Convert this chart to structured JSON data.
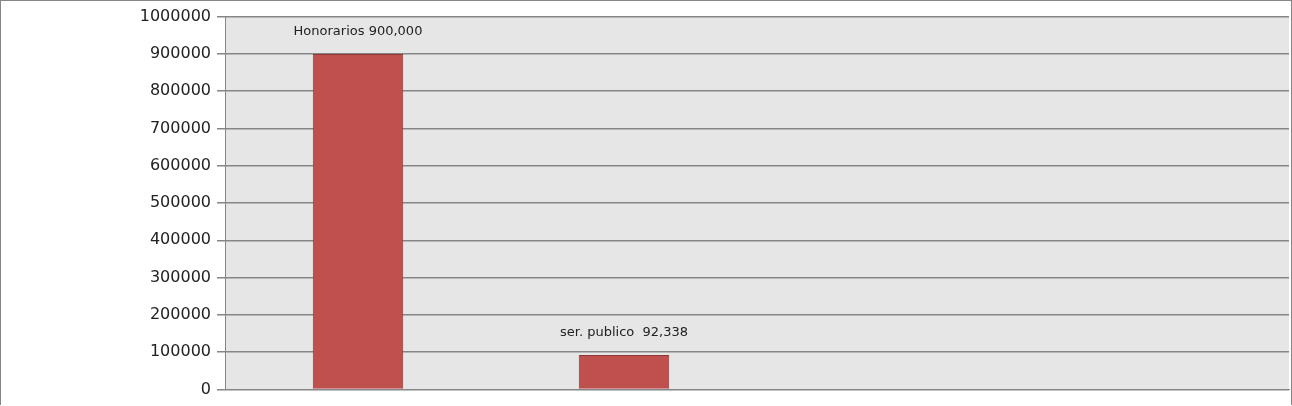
{
  "chart_data": {
    "type": "bar",
    "categories": [
      null,
      null,
      null,
      null
    ],
    "values": [
      900000,
      92338,
      null,
      null
    ],
    "value_labels": [
      "Honorarios 900,000",
      "ser. publico  92,338",
      null,
      null
    ],
    "color": "#c0504d",
    "ylim": [
      0,
      1000000
    ],
    "yticks": [
      0,
      100000,
      200000,
      300000,
      400000,
      500000,
      600000,
      700000,
      800000,
      900000,
      1000000
    ],
    "grid": "y",
    "legend": false
  }
}
